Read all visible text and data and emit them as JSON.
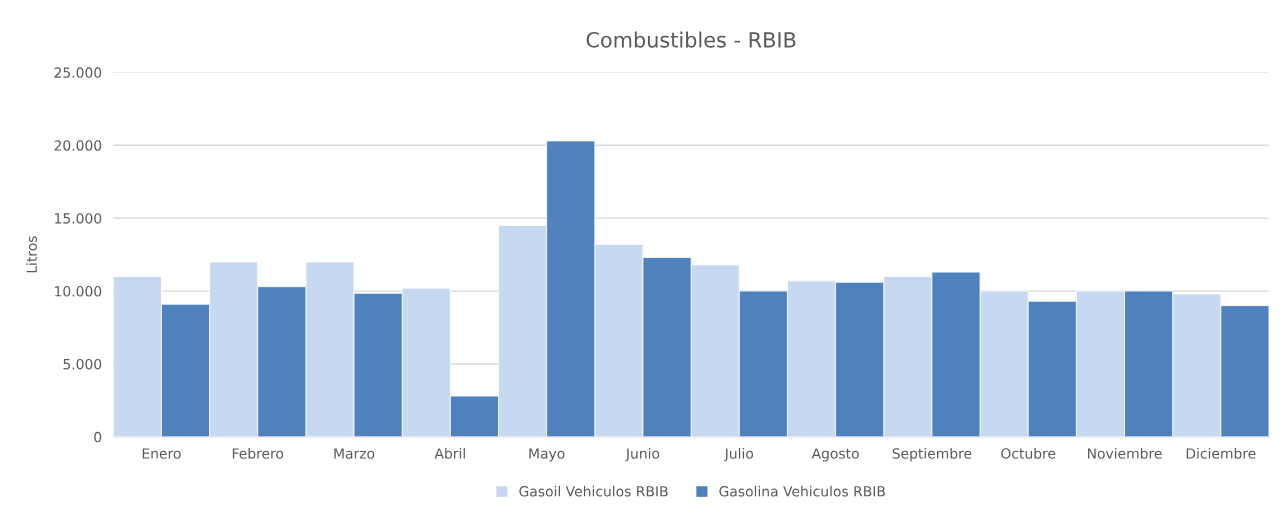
{
  "chart_data": {
    "type": "bar",
    "title": "Combustibles - RBIB",
    "ylabel": "Litros",
    "categories": [
      "Enero",
      "Febrero",
      "Marzo",
      "Abril",
      "Mayo",
      "Junio",
      "Julio",
      "Agosto",
      "Septiembre",
      "Octubre",
      "Noviembre",
      "Diciembre"
    ],
    "series": [
      {
        "name": "Gasoil Vehiculos RBIB",
        "color": "#c6d9f0",
        "values": [
          11000,
          12000,
          12000,
          10200,
          14500,
          13200,
          11800,
          10700,
          11000,
          10000,
          10000,
          9800
        ]
      },
      {
        "name": "Gasolina Vehiculos RBIB",
        "color": "#4f81bd",
        "values": [
          9100,
          10300,
          9850,
          2800,
          20300,
          12300,
          10000,
          10600,
          11300,
          9300,
          10000,
          9000
        ]
      }
    ],
    "ylim": [
      0,
      25000
    ],
    "yticks": [
      {
        "value": 0,
        "label": "0"
      },
      {
        "value": 5000,
        "label": "5.000"
      },
      {
        "value": 10000,
        "label": "10.000"
      },
      {
        "value": 15000,
        "label": "15.000"
      },
      {
        "value": 20000,
        "label": "20.000"
      },
      {
        "value": 25000,
        "label": "25.000"
      }
    ],
    "grid": "y",
    "legend": "bottom"
  }
}
